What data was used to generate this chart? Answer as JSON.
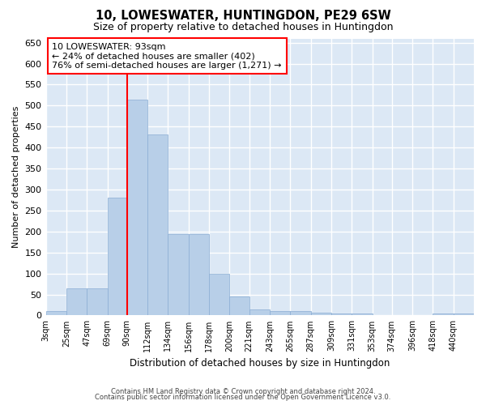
{
  "title": "10, LOWESWATER, HUNTINGDON, PE29 6SW",
  "subtitle": "Size of property relative to detached houses in Huntingdon",
  "xlabel": "Distribution of detached houses by size in Huntingdon",
  "ylabel": "Number of detached properties",
  "bar_color": "#b8cfe8",
  "bar_edge_color": "#8aadd4",
  "background_color": "#dce8f5",
  "grid_color": "#ffffff",
  "vline_x": 90,
  "vline_color": "red",
  "annotation_text": "10 LOWESWATER: 93sqm\n← 24% of detached houses are smaller (402)\n76% of semi-detached houses are larger (1,271) →",
  "annotation_box_color": "white",
  "annotation_box_edge": "red",
  "categories": [
    "3sqm",
    "25sqm",
    "47sqm",
    "69sqm",
    "90sqm",
    "112sqm",
    "134sqm",
    "156sqm",
    "178sqm",
    "200sqm",
    "221sqm",
    "243sqm",
    "265sqm",
    "287sqm",
    "309sqm",
    "331sqm",
    "353sqm",
    "374sqm",
    "396sqm",
    "418sqm",
    "440sqm"
  ],
  "bin_edges": [
    3,
    25,
    47,
    69,
    90,
    112,
    134,
    156,
    178,
    200,
    221,
    243,
    265,
    287,
    309,
    331,
    353,
    374,
    396,
    418,
    440,
    462
  ],
  "values": [
    10,
    65,
    65,
    280,
    515,
    432,
    193,
    193,
    100,
    46,
    15,
    10,
    10,
    6,
    5,
    5,
    0,
    0,
    0,
    5,
    5
  ],
  "ylim": [
    0,
    660
  ],
  "yticks": [
    0,
    50,
    100,
    150,
    200,
    250,
    300,
    350,
    400,
    450,
    500,
    550,
    600,
    650
  ],
  "footer1": "Contains HM Land Registry data © Crown copyright and database right 2024.",
  "footer2": "Contains public sector information licensed under the Open Government Licence v3.0."
}
